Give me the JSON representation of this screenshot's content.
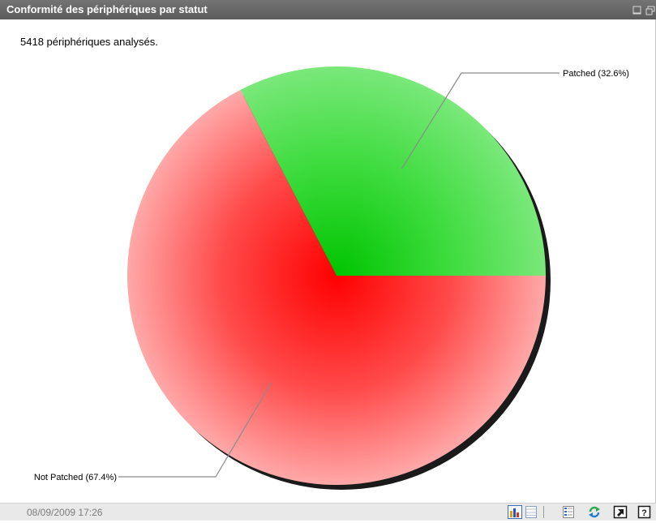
{
  "panel": {
    "title": "Conformité des périphériques par statut",
    "summary": "5418 périphériques analysés.",
    "timestamp": "08/09/2009 17:26"
  },
  "icons": {
    "window_controls": [
      "minimize-icon",
      "restore-icon"
    ],
    "toolbar": [
      "bar-chart-view-icon",
      "table-view-icon",
      "legend-icon",
      "refresh-icon",
      "open-external-icon",
      "help-icon"
    ]
  },
  "colors": {
    "titlebar": "#666666",
    "patched": "#22cc22",
    "not_patched": "#ff3b3b",
    "footer": "#e9e9e9"
  },
  "chart_data": {
    "type": "pie",
    "title": "",
    "slices": [
      {
        "label": "Patched (32.6%)",
        "value": 32.6,
        "color": "#22cc22"
      },
      {
        "label": "Not Patched (67.4%)",
        "value": 67.4,
        "color": "#ff3b3b"
      }
    ],
    "legend": "none"
  }
}
